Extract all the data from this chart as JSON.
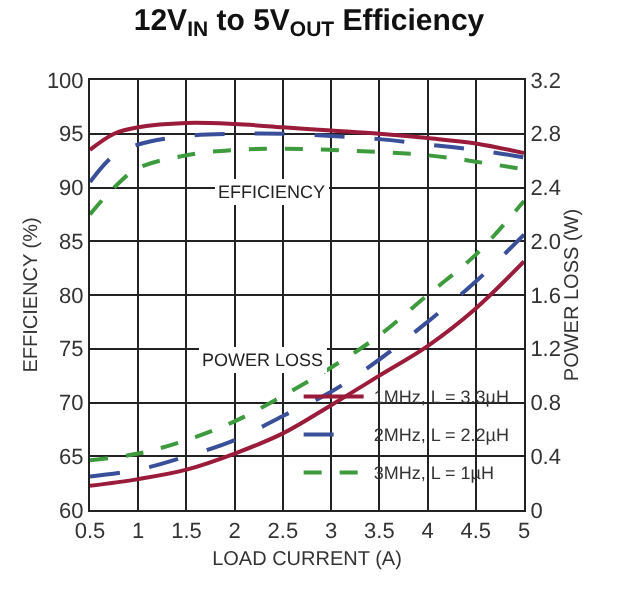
{
  "chart_data": {
    "type": "line",
    "title": "12V$_{IN}$ to 5V$_{OUT}$ Efficiency",
    "xlabel": "LOAD CURRENT (A)",
    "ylabel": "EFFICIENCY (%)",
    "y2label": "POWER LOSS (W)",
    "xlim": [
      0.5,
      5
    ],
    "xticks": [
      0.5,
      1,
      1.5,
      2,
      2.5,
      3,
      3.5,
      4,
      4.5,
      5
    ],
    "ylim": [
      60,
      100
    ],
    "yticks": [
      60,
      65,
      70,
      75,
      80,
      85,
      90,
      95,
      100
    ],
    "y2lim": [
      0,
      3.2
    ],
    "y2ticks": [
      0,
      0.4,
      {
        "value": 0.8,
        "label": "0.8"
      },
      1.2,
      1.6,
      {
        "value": 2,
        "label": "2.0"
      },
      2.4,
      2.8,
      3.2
    ],
    "x": [
      0.5,
      0.75,
      1,
      1.5,
      2,
      2.5,
      3,
      3.5,
      4,
      4.5,
      5
    ],
    "series": [
      {
        "name": "1MHz, L = 3.3µH",
        "color": "#9b1b3a",
        "line_style": "solid",
        "values": [
          93.5,
          95,
          95.6,
          96,
          95.9,
          95.6,
          95.3,
          95,
          94.6,
          94.1,
          93.2
        ]
      },
      {
        "name": "2MHz, L = 2.2µH",
        "color": "#3a4f9a",
        "line_style": "dashed",
        "values": [
          90.5,
          93,
          94,
          94.8,
          95,
          95,
          94.8,
          94.5,
          94,
          93.5,
          92.8
        ]
      },
      {
        "name": "3MHz, L = 1µH",
        "color": "#3d9a3d",
        "line_style": "dotted",
        "values": [
          87.5,
          90,
          91.8,
          93,
          93.5,
          93.6,
          93.5,
          93.3,
          93,
          92.4,
          91.7
        ]
      },
      {
        "color": "#9b1b3a",
        "line_style": "solid",
        "axis": "y2",
        "x": [
          0.5,
          1,
          1.5,
          2,
          2.5,
          3,
          3.5,
          4,
          4.5,
          5
        ],
        "values": [
          0.18,
          0.23,
          0.3,
          0.42,
          0.57,
          0.78,
          1.0,
          1.22,
          1.5,
          1.85
        ]
      },
      {
        "color": "#3a4f9a",
        "line_style": "dashed",
        "axis": "y2",
        "x": [
          0.5,
          1,
          1.5,
          2,
          2.5,
          3,
          3.5,
          4,
          4.5,
          5
        ],
        "values": [
          0.25,
          0.3,
          0.4,
          0.52,
          0.7,
          0.88,
          1.12,
          1.4,
          1.7,
          2.05
        ]
      },
      {
        "color": "#3d9a3d",
        "line_style": "dotted",
        "axis": "y2",
        "x": [
          0.5,
          1,
          1.5,
          2,
          2.5,
          3,
          3.5,
          4,
          4.5,
          5
        ],
        "values": [
          0.37,
          0.42,
          0.52,
          0.66,
          0.85,
          1.06,
          1.3,
          1.6,
          1.9,
          2.3
        ]
      }
    ],
    "annotations": [
      "EFFICIENCY",
      "POWER LOSS"
    ],
    "grid": true,
    "legend": "bottom right",
    "marker": "none"
  }
}
